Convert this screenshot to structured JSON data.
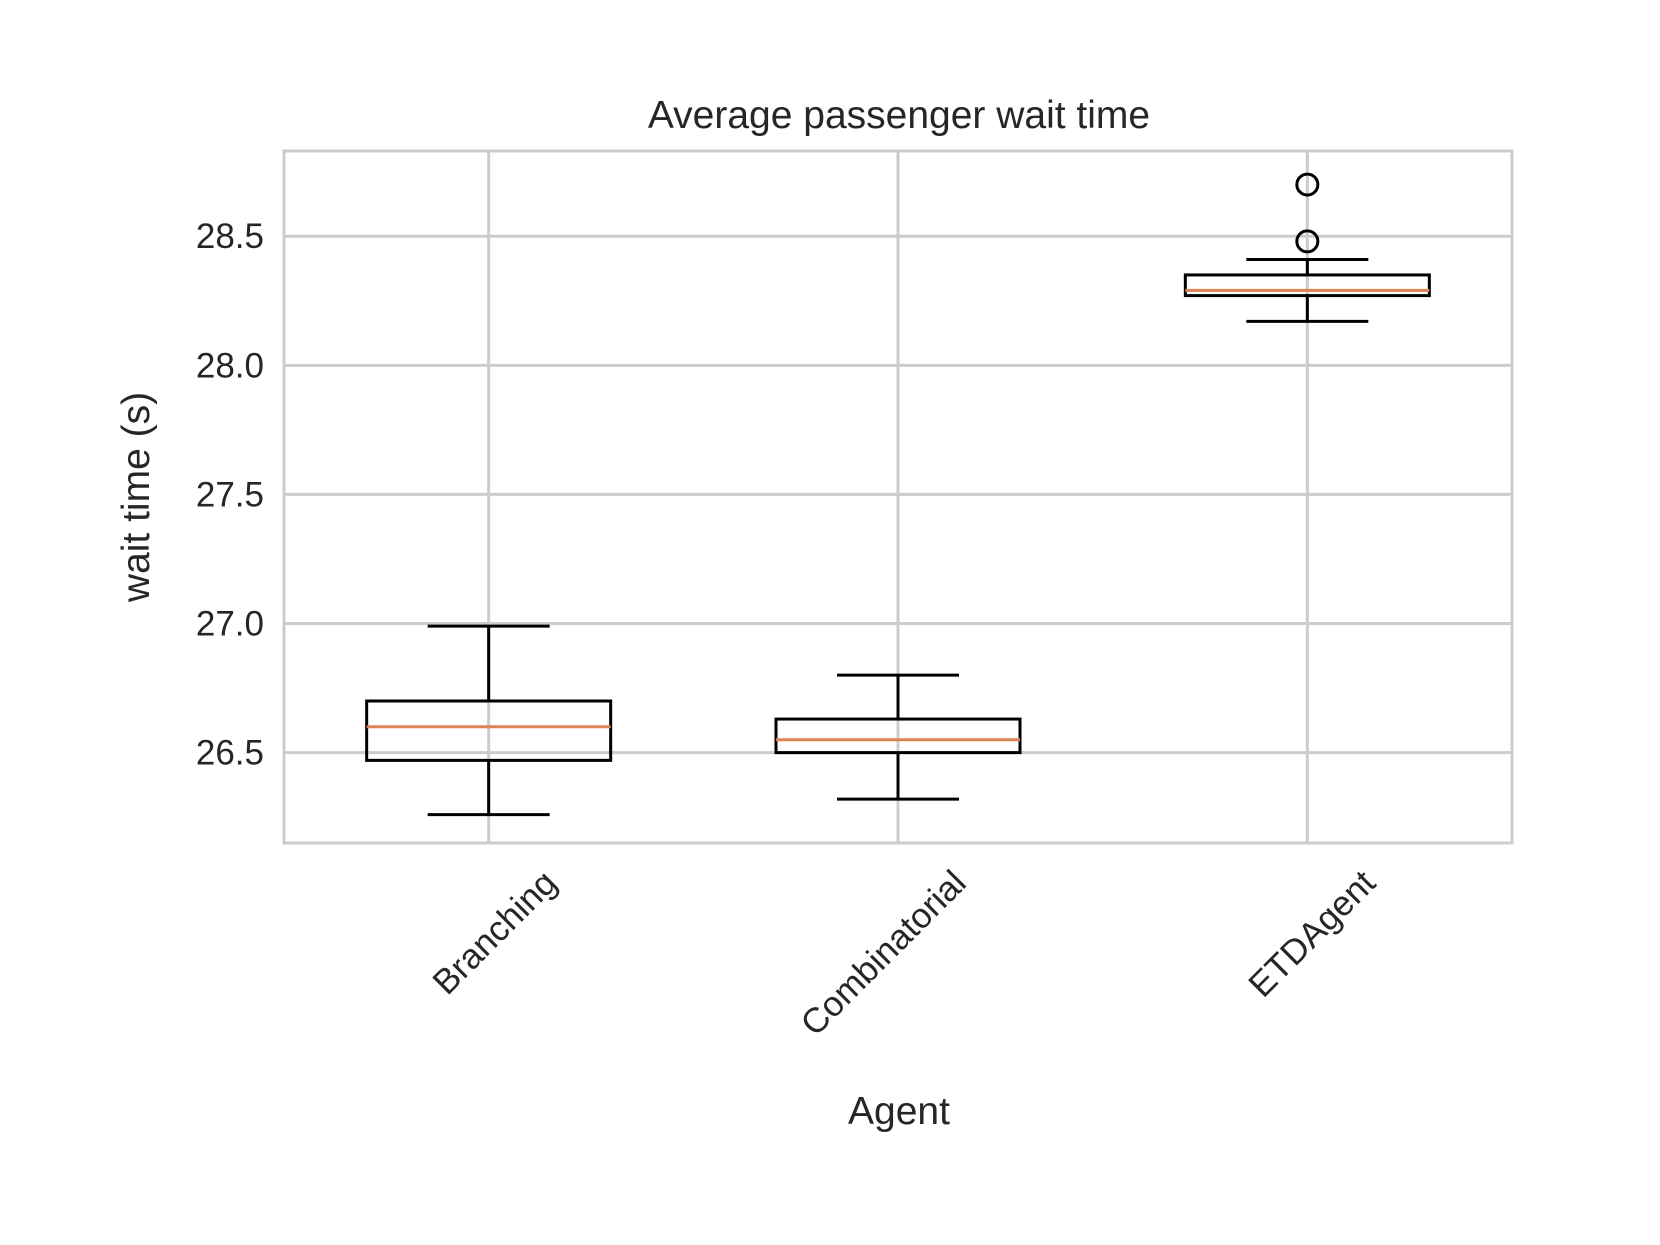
{
  "chart_data": {
    "type": "boxplot",
    "title": "Average passenger wait time",
    "xlabel": "Agent",
    "ylabel": "wait time (s)",
    "ylim": [
      26.15,
      28.83
    ],
    "yticks": [
      26.5,
      27.0,
      27.5,
      28.0,
      28.5
    ],
    "ytick_labels": [
      "26.5",
      "27.0",
      "27.5",
      "28.0",
      "28.5"
    ],
    "grid": true,
    "categories": [
      "Branching",
      "Combinatorial",
      "ETDAgent"
    ],
    "boxes": [
      {
        "name": "Branching",
        "whislo": 26.26,
        "q1": 26.47,
        "med": 26.6,
        "q3": 26.7,
        "whishi": 26.99,
        "fliers": []
      },
      {
        "name": "Combinatorial",
        "whislo": 26.32,
        "q1": 26.5,
        "med": 26.55,
        "q3": 26.63,
        "whishi": 26.8,
        "fliers": []
      },
      {
        "name": "ETDAgent",
        "whislo": 28.17,
        "q1": 28.27,
        "med": 28.29,
        "q3": 28.35,
        "whishi": 28.41,
        "fliers": [
          28.48,
          28.7
        ]
      }
    ],
    "colors": {
      "box": "#000000",
      "median": "#dd8452",
      "grid": "#cccccc",
      "text": "#262626"
    }
  }
}
